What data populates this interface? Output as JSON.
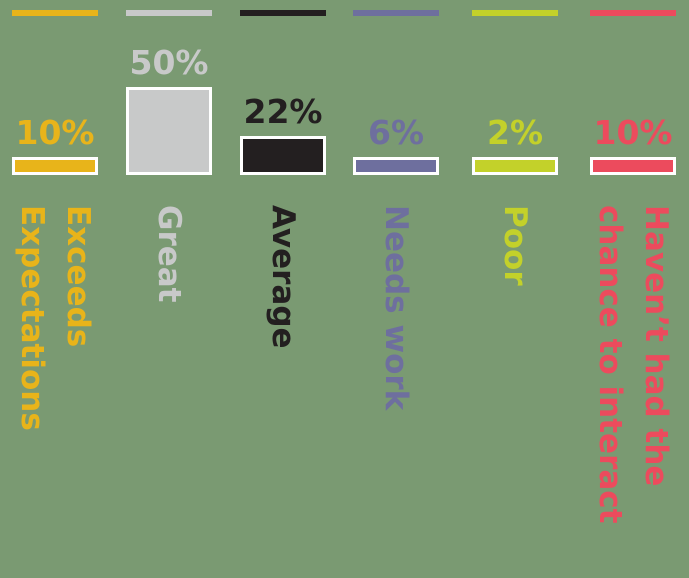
{
  "chart_data": {
    "type": "bar",
    "title": "",
    "xlabel": "",
    "ylabel": "",
    "ylim": [
      0,
      50
    ],
    "grid": false,
    "legend": "none",
    "categories": [
      "Exceeds Expectations",
      "Great",
      "Average",
      "Needs work",
      "Poor",
      "Haven’t had the chance to interact"
    ],
    "category_lines": [
      [
        "Exceeds",
        "Expectations"
      ],
      [
        "Great"
      ],
      [
        "Average"
      ],
      [
        "Needs work"
      ],
      [
        "Poor"
      ],
      [
        "Haven’t had the",
        "chance to interact"
      ]
    ],
    "values": [
      10,
      50,
      22,
      6,
      2,
      10
    ],
    "value_labels": [
      "10%",
      "50%",
      "22%",
      "6%",
      "2%",
      "10%"
    ],
    "colors": [
      "#e8b41a",
      "#c8c9c9",
      "#231f20",
      "#6e6f9e",
      "#c3d12a",
      "#ec4b5d"
    ],
    "background": "#7a9a72",
    "bar_border": "#ffffff"
  }
}
